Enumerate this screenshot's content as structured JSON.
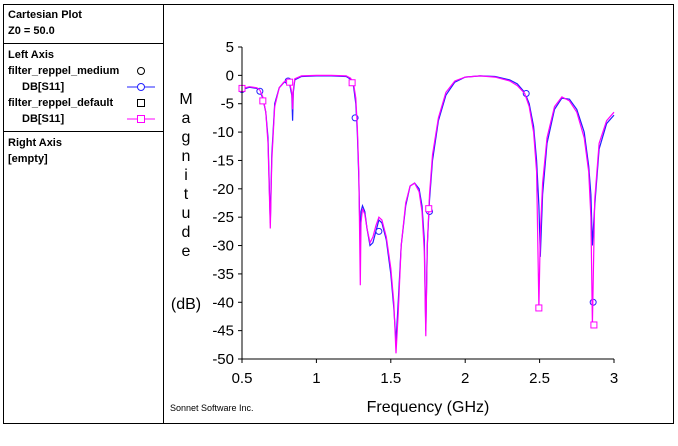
{
  "legend": {
    "title": "Cartesian Plot",
    "z0": "Z0 = 50.0",
    "left_axis_label": "Left Axis",
    "right_axis_label": "Right Axis",
    "right_axis_value": "[empty]",
    "entries": [
      {
        "name": "filter_reppel_medium",
        "param": "DB[S11]",
        "color": "#2020ff",
        "marker": "circle"
      },
      {
        "name": "filter_reppel_default",
        "param": "DB[S11]",
        "color": "#ff00ff",
        "marker": "square"
      }
    ]
  },
  "chart_data": {
    "type": "line",
    "xlabel": "Frequency (GHz)",
    "ylabel": "Magnitude",
    "ylabel_unit": "(dB)",
    "footer": "Sonnet Software Inc.",
    "xlim": [
      0.5,
      3
    ],
    "ylim": [
      -50,
      5
    ],
    "xticks": [
      0.5,
      1,
      1.5,
      2,
      2.5,
      3
    ],
    "xtick_labels": [
      "0.5",
      "1",
      "1.5",
      "2",
      "2.5",
      "3"
    ],
    "yticks": [
      5,
      0,
      -5,
      -10,
      -15,
      -20,
      -25,
      -30,
      -35,
      -40,
      -45,
      -50
    ],
    "ytick_labels": [
      "5",
      "0",
      "-5",
      "-10",
      "-15",
      "-20",
      "-25",
      "-30",
      "-35",
      "-40",
      "-45",
      "-50"
    ],
    "series": [
      {
        "name": "filter_reppel_medium DB[S11]",
        "color": "#2020ff",
        "marker": "circle",
        "points": [
          [
            0.5,
            -2.5
          ],
          [
            0.55,
            -2.1
          ],
          [
            0.6,
            -2.3
          ],
          [
            0.62,
            -2.8
          ],
          [
            0.64,
            -4
          ],
          [
            0.66,
            -6.5
          ],
          [
            0.675,
            -11
          ],
          [
            0.69,
            -26
          ],
          [
            0.7,
            -14
          ],
          [
            0.72,
            -5
          ],
          [
            0.75,
            -2.2
          ],
          [
            0.78,
            -1.3
          ],
          [
            0.8,
            -1.0
          ],
          [
            0.82,
            -1.5
          ],
          [
            0.835,
            -3.5
          ],
          [
            0.84,
            -8
          ],
          [
            0.845,
            -3
          ],
          [
            0.855,
            -0.8
          ],
          [
            0.9,
            -0.2
          ],
          [
            1.0,
            -0.1
          ],
          [
            1.1,
            -0.1
          ],
          [
            1.2,
            -0.2
          ],
          [
            1.23,
            -0.7
          ],
          [
            1.25,
            -2
          ],
          [
            1.265,
            -5
          ],
          [
            1.275,
            -10
          ],
          [
            1.285,
            -18
          ],
          [
            1.295,
            -31
          ],
          [
            1.3,
            -24
          ],
          [
            1.31,
            -23
          ],
          [
            1.325,
            -24
          ],
          [
            1.34,
            -27
          ],
          [
            1.36,
            -30
          ],
          [
            1.38,
            -29.5
          ],
          [
            1.4,
            -27.5
          ],
          [
            1.42,
            -25.5
          ],
          [
            1.44,
            -26
          ],
          [
            1.47,
            -29
          ],
          [
            1.5,
            -35
          ],
          [
            1.52,
            -41
          ],
          [
            1.535,
            -47
          ],
          [
            1.55,
            -40
          ],
          [
            1.57,
            -30
          ],
          [
            1.6,
            -23
          ],
          [
            1.63,
            -19.5
          ],
          [
            1.66,
            -19
          ],
          [
            1.69,
            -20
          ],
          [
            1.71,
            -23
          ],
          [
            1.725,
            -29
          ],
          [
            1.735,
            -45
          ],
          [
            1.745,
            -30
          ],
          [
            1.76,
            -22
          ],
          [
            1.78,
            -15
          ],
          [
            1.82,
            -8
          ],
          [
            1.87,
            -3.5
          ],
          [
            1.93,
            -1.2
          ],
          [
            2.0,
            -0.3
          ],
          [
            2.1,
            -0.1
          ],
          [
            2.2,
            -0.2
          ],
          [
            2.3,
            -0.8
          ],
          [
            2.35,
            -1.5
          ],
          [
            2.4,
            -3
          ],
          [
            2.43,
            -5
          ],
          [
            2.46,
            -9
          ],
          [
            2.48,
            -15
          ],
          [
            2.495,
            -23
          ],
          [
            2.505,
            -32
          ],
          [
            2.52,
            -21
          ],
          [
            2.55,
            -12
          ],
          [
            2.6,
            -6
          ],
          [
            2.65,
            -4
          ],
          [
            2.7,
            -4.2
          ],
          [
            2.75,
            -6
          ],
          [
            2.8,
            -10
          ],
          [
            2.83,
            -16
          ],
          [
            2.845,
            -21
          ],
          [
            2.855,
            -30
          ],
          [
            2.87,
            -23
          ],
          [
            2.9,
            -13
          ],
          [
            2.95,
            -8.5
          ],
          [
            3.0,
            -7
          ]
        ],
        "marker_points": [
          [
            0.5,
            -2.5
          ],
          [
            0.62,
            -2.8
          ],
          [
            0.81,
            -1.0
          ],
          [
            1.26,
            -7.5
          ],
          [
            1.42,
            -27.5
          ],
          [
            1.76,
            -24
          ],
          [
            2.41,
            -3.2
          ],
          [
            2.86,
            -40
          ]
        ]
      },
      {
        "name": "filter_reppel_default DB[S11]",
        "color": "#ff00ff",
        "marker": "square",
        "points": [
          [
            0.5,
            -2.3
          ],
          [
            0.55,
            -2.0
          ],
          [
            0.6,
            -2.2
          ],
          [
            0.62,
            -2.6
          ],
          [
            0.64,
            -3.8
          ],
          [
            0.66,
            -6.5
          ],
          [
            0.675,
            -12
          ],
          [
            0.69,
            -27
          ],
          [
            0.7,
            -15
          ],
          [
            0.72,
            -5.5
          ],
          [
            0.75,
            -2.2
          ],
          [
            0.78,
            -1.2
          ],
          [
            0.8,
            -0.9
          ],
          [
            0.82,
            -1.3
          ],
          [
            0.835,
            -3
          ],
          [
            0.84,
            -6
          ],
          [
            0.845,
            -2.5
          ],
          [
            0.855,
            -0.6
          ],
          [
            0.9,
            -0.1
          ],
          [
            1.0,
            0.0
          ],
          [
            1.1,
            0.0
          ],
          [
            1.2,
            -0.1
          ],
          [
            1.23,
            -0.5
          ],
          [
            1.25,
            -1.5
          ],
          [
            1.265,
            -4
          ],
          [
            1.275,
            -9
          ],
          [
            1.285,
            -17
          ],
          [
            1.295,
            -37
          ],
          [
            1.3,
            -26
          ],
          [
            1.31,
            -23.5
          ],
          [
            1.325,
            -24.5
          ],
          [
            1.34,
            -27
          ],
          [
            1.36,
            -29.5
          ],
          [
            1.38,
            -28.5
          ],
          [
            1.4,
            -26.5
          ],
          [
            1.42,
            -25
          ],
          [
            1.44,
            -25.5
          ],
          [
            1.47,
            -28.5
          ],
          [
            1.5,
            -34
          ],
          [
            1.52,
            -40
          ],
          [
            1.535,
            -49
          ],
          [
            1.55,
            -42
          ],
          [
            1.57,
            -30
          ],
          [
            1.6,
            -22.5
          ],
          [
            1.63,
            -19.5
          ],
          [
            1.66,
            -19
          ],
          [
            1.69,
            -20.5
          ],
          [
            1.71,
            -24
          ],
          [
            1.725,
            -31
          ],
          [
            1.735,
            -46
          ],
          [
            1.745,
            -30
          ],
          [
            1.76,
            -21
          ],
          [
            1.78,
            -14
          ],
          [
            1.82,
            -7.5
          ],
          [
            1.87,
            -3
          ],
          [
            1.93,
            -1
          ],
          [
            2.0,
            -0.3
          ],
          [
            2.1,
            -0.1
          ],
          [
            2.2,
            -0.3
          ],
          [
            2.3,
            -1
          ],
          [
            2.35,
            -1.8
          ],
          [
            2.4,
            -3.2
          ],
          [
            2.43,
            -5.5
          ],
          [
            2.46,
            -10
          ],
          [
            2.48,
            -17
          ],
          [
            2.495,
            -41
          ],
          [
            2.505,
            -28
          ],
          [
            2.52,
            -19
          ],
          [
            2.55,
            -11
          ],
          [
            2.6,
            -5.5
          ],
          [
            2.65,
            -3.8
          ],
          [
            2.7,
            -4.5
          ],
          [
            2.75,
            -6.5
          ],
          [
            2.8,
            -11
          ],
          [
            2.83,
            -17
          ],
          [
            2.845,
            -25
          ],
          [
            2.855,
            -44
          ],
          [
            2.87,
            -22
          ],
          [
            2.9,
            -12
          ],
          [
            2.95,
            -8
          ],
          [
            3.0,
            -6.5
          ]
        ],
        "marker_points": [
          [
            0.5,
            -2.3
          ],
          [
            0.64,
            -4.5
          ],
          [
            0.82,
            -1.2
          ],
          [
            1.24,
            -1.3
          ],
          [
            1.755,
            -23.5
          ],
          [
            2.495,
            -41
          ],
          [
            2.865,
            -44
          ]
        ]
      }
    ]
  }
}
